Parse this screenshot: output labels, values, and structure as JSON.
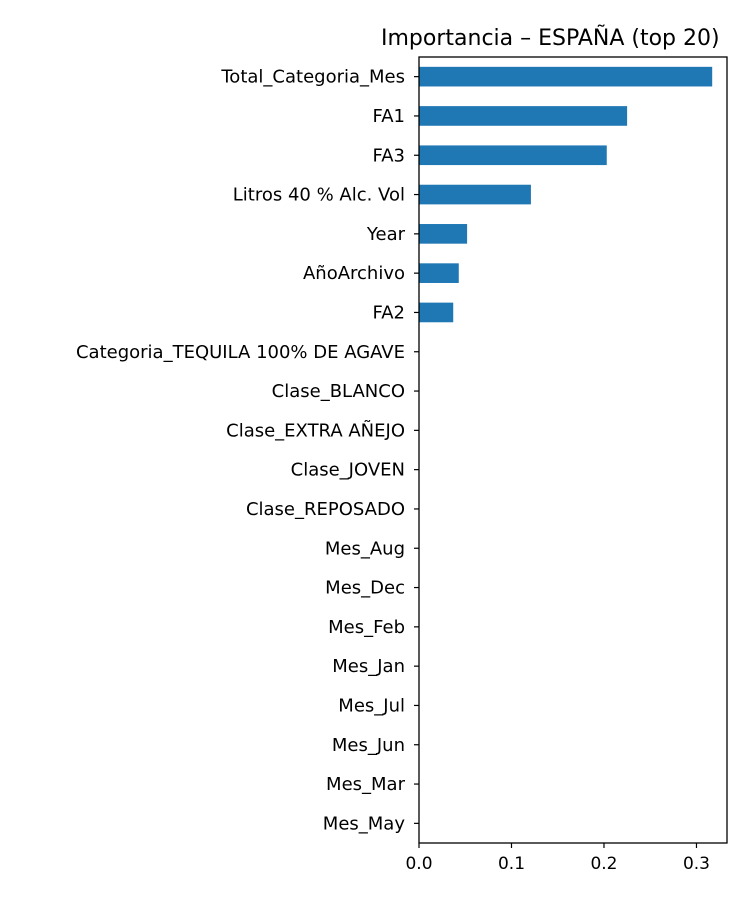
{
  "chart_data": {
    "type": "bar",
    "orientation": "horizontal",
    "title": "Importancia – ESPAÑA (top 20)",
    "xlabel": "",
    "ylabel": "",
    "categories": [
      "Total_Categoria_Mes",
      "FA1",
      "FA3",
      "Litros 40 % Alc. Vol",
      "Year",
      "AñoArchivo",
      "FA2",
      "Categoria_TEQUILA 100% DE AGAVE",
      "Clase_BLANCO",
      "Clase_EXTRA AÑEJO",
      "Clase_JOVEN",
      "Clase_REPOSADO",
      "Mes_Aug",
      "Mes_Dec",
      "Mes_Feb",
      "Mes_Jan",
      "Mes_Jul",
      "Mes_Jun",
      "Mes_Mar",
      "Mes_May"
    ],
    "values": [
      0.317,
      0.225,
      0.203,
      0.121,
      0.052,
      0.043,
      0.037,
      0,
      0,
      0,
      0,
      0,
      0,
      0,
      0,
      0,
      0,
      0,
      0,
      0
    ],
    "xlim": [
      0,
      0.333
    ],
    "xticks": [
      0.0,
      0.1,
      0.2,
      0.3
    ],
    "xtick_labels": [
      "0.0",
      "0.1",
      "0.2",
      "0.3"
    ],
    "bar_color": "#1f77b4",
    "grid": false,
    "legend": "none"
  }
}
